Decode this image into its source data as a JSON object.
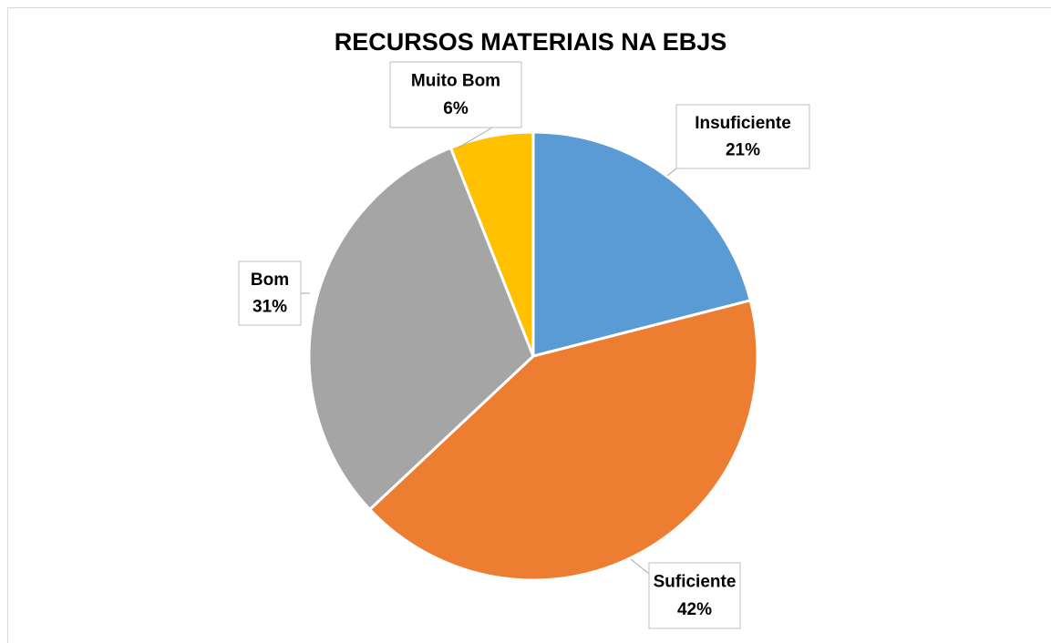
{
  "chart_data": {
    "type": "pie",
    "title": "RECURSOS MATERIAIS NA EBJS",
    "categories": [
      "Insuficiente",
      "Suficiente",
      "Bom",
      "Muito Bom"
    ],
    "values": [
      21,
      42,
      31,
      6
    ],
    "value_labels": [
      "21%",
      "42%",
      "31%",
      "6%"
    ],
    "colors": [
      "#5b9bd5",
      "#ed7d31",
      "#a5a5a5",
      "#ffc000"
    ]
  }
}
